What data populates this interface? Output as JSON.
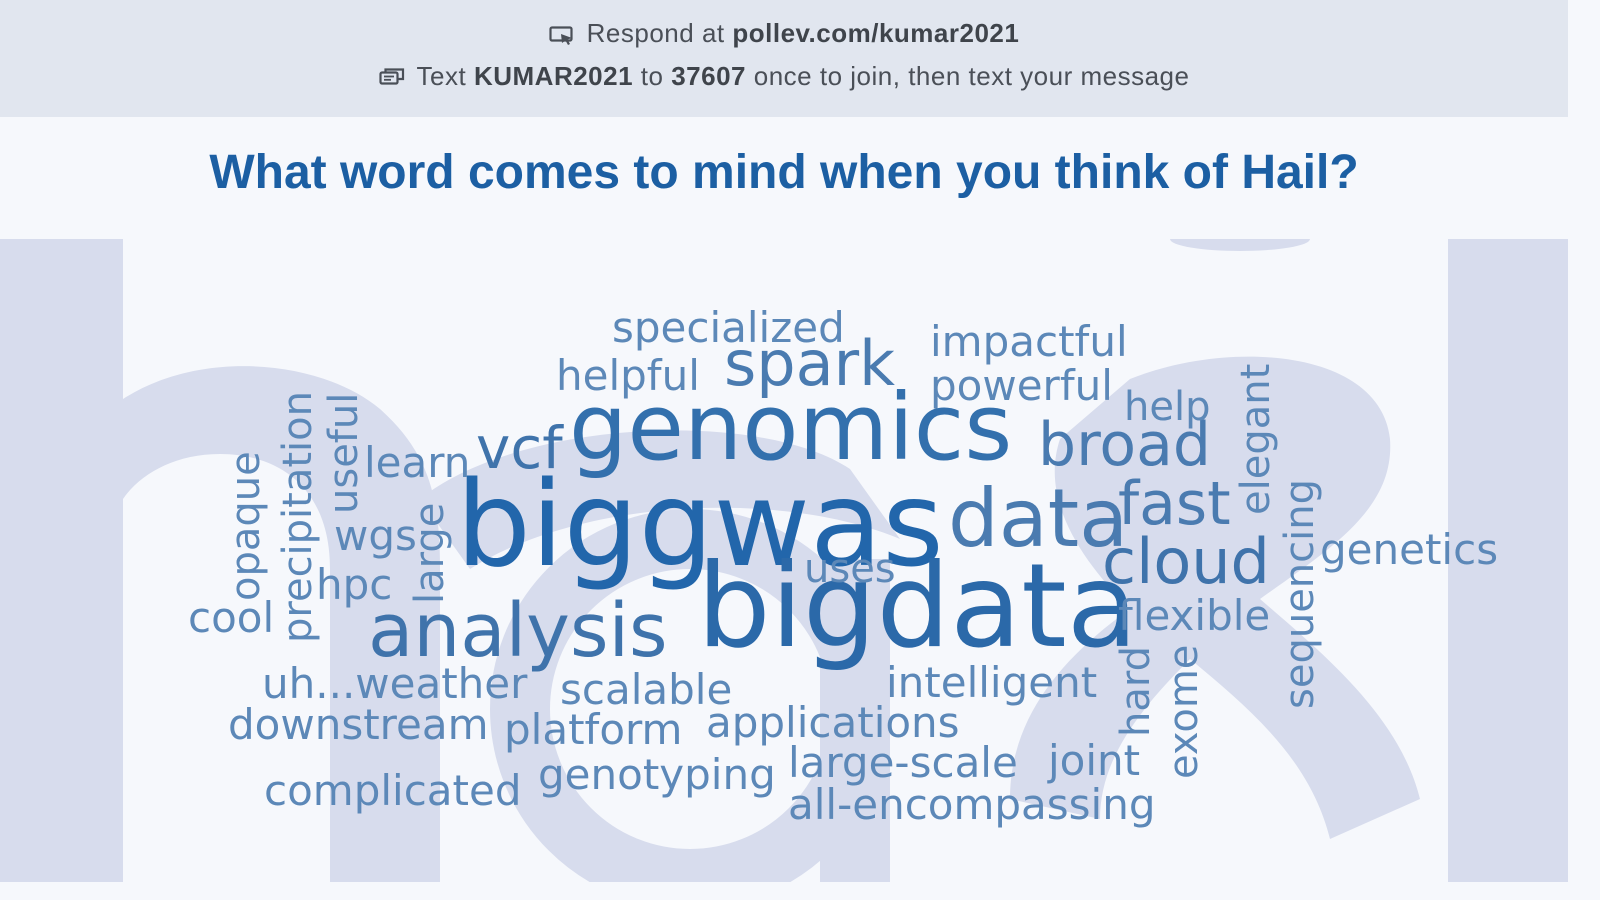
{
  "header": {
    "respond_prefix": "Respond at",
    "respond_url": "pollev.com/kumar2021",
    "text_prefix": "Text",
    "text_code": "KUMAR2021",
    "text_to": "to",
    "text_number": "37607",
    "text_suffix": "once to join, then text your message"
  },
  "poll": {
    "question": "What word comes to mind when you think of Hail?"
  },
  "colors": {
    "dark": "#2266ab",
    "mid": "#3b71aa",
    "light": "#5c88b8",
    "watermark": "#d7dced"
  },
  "icons": {
    "respond": "screen-pointer-icon",
    "text": "message-icon"
  },
  "words": [
    {
      "text": "biggwas",
      "weight": 10
    },
    {
      "text": "bigdata",
      "weight": 9
    },
    {
      "text": "genomics",
      "weight": 8
    },
    {
      "text": "analysis",
      "weight": 6
    },
    {
      "text": "data",
      "weight": 6
    },
    {
      "text": "spark",
      "weight": 5
    },
    {
      "text": "broad",
      "weight": 5
    },
    {
      "text": "fast",
      "weight": 5
    },
    {
      "text": "cloud",
      "weight": 5
    },
    {
      "text": "vcf",
      "weight": 5
    },
    {
      "text": "specialized",
      "weight": 3
    },
    {
      "text": "impactful",
      "weight": 3
    },
    {
      "text": "helpful",
      "weight": 3
    },
    {
      "text": "powerful",
      "weight": 3
    },
    {
      "text": "help",
      "weight": 3
    },
    {
      "text": "learn",
      "weight": 3
    },
    {
      "text": "wgs",
      "weight": 3
    },
    {
      "text": "hpc",
      "weight": 3
    },
    {
      "text": "cool",
      "weight": 3
    },
    {
      "text": "uses",
      "weight": 3
    },
    {
      "text": "genetics",
      "weight": 3
    },
    {
      "text": "flexible",
      "weight": 3
    },
    {
      "text": "intelligent",
      "weight": 3
    },
    {
      "text": "scalable",
      "weight": 3
    },
    {
      "text": "uh...weather",
      "weight": 3
    },
    {
      "text": "downstream",
      "weight": 3
    },
    {
      "text": "platform",
      "weight": 3
    },
    {
      "text": "applications",
      "weight": 3
    },
    {
      "text": "large-scale",
      "weight": 3
    },
    {
      "text": "joint",
      "weight": 3
    },
    {
      "text": "complicated",
      "weight": 3
    },
    {
      "text": "genotyping",
      "weight": 3
    },
    {
      "text": "all-encompassing",
      "weight": 3
    },
    {
      "text": "opaque",
      "weight": 3
    },
    {
      "text": "precipitation",
      "weight": 3
    },
    {
      "text": "useful",
      "weight": 3
    },
    {
      "text": "large",
      "weight": 3
    },
    {
      "text": "elegant",
      "weight": 3
    },
    {
      "text": "sequencing",
      "weight": 3
    },
    {
      "text": "hard",
      "weight": 3
    },
    {
      "text": "exome",
      "weight": 3
    }
  ]
}
